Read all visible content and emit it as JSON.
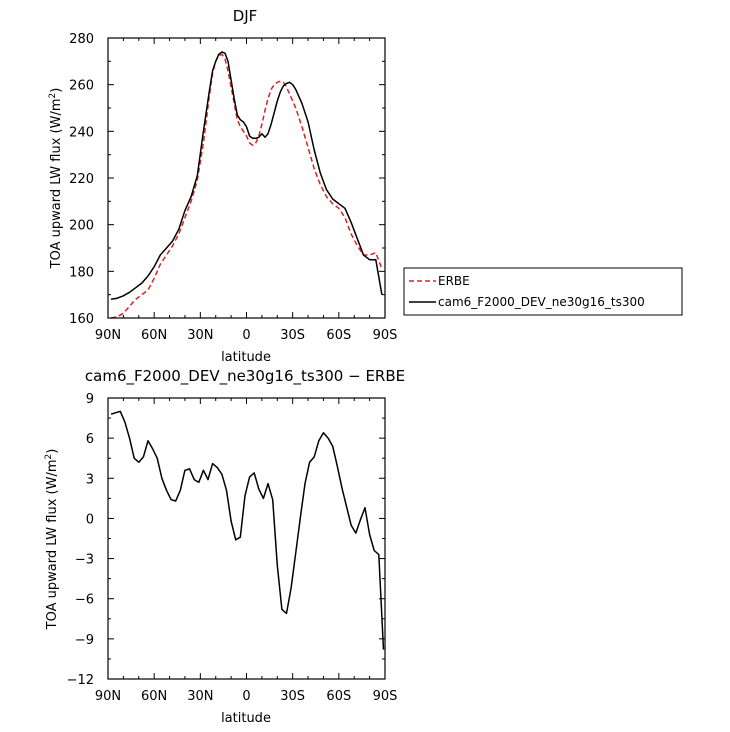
{
  "chart_data": [
    {
      "type": "line",
      "title": "DJF",
      "xlabel": "latitude",
      "ylabel": "TOA upward LW flux (W/m",
      "ylabel_sup": "2",
      "ylabel_close": ")",
      "xlim": [
        90,
        -90
      ],
      "ylim": [
        160,
        280
      ],
      "xticks": [
        90,
        60,
        30,
        0,
        -30,
        -60,
        -90
      ],
      "xticklabels": [
        "90N",
        "60N",
        "30N",
        "0",
        "30S",
        "60S",
        "90S"
      ],
      "yticks": [
        160,
        180,
        200,
        220,
        240,
        260,
        280
      ],
      "yticklabels": [
        "160",
        "180",
        "200",
        "220",
        "240",
        "260",
        "280"
      ],
      "legend_position": "right",
      "series": [
        {
          "name": "ERBE",
          "color": "#e0201f",
          "dash": true,
          "x": [
            88,
            84,
            80,
            76,
            72,
            68,
            64,
            60,
            56,
            52,
            48,
            44,
            40,
            36,
            32,
            28,
            24,
            22,
            20,
            18,
            16,
            14,
            12,
            10,
            8,
            6,
            4,
            2,
            0,
            -2,
            -4,
            -6,
            -8,
            -10,
            -12,
            -14,
            -16,
            -18,
            -20,
            -22,
            -24,
            -26,
            -28,
            -30,
            -32,
            -34,
            -36,
            -40,
            -44,
            -48,
            -52,
            -56,
            -60,
            -64,
            -68,
            -72,
            -76,
            -80,
            -84,
            -88
          ],
          "y": [
            160,
            160.5,
            162,
            165,
            168,
            170,
            172,
            177,
            183,
            187,
            191,
            196,
            203,
            210,
            219,
            235,
            256,
            265,
            270,
            272.5,
            273,
            271,
            266,
            259,
            252,
            245,
            242,
            240,
            238,
            235,
            234,
            235,
            238,
            243,
            249,
            254,
            258,
            260,
            261,
            261.5,
            261,
            259,
            256,
            253,
            250,
            246,
            242,
            233,
            224,
            217,
            212,
            209,
            207,
            203,
            196,
            191,
            187,
            187,
            188,
            181
          ]
        },
        {
          "name": "cam6_F2000_DEV_ne30g16_ts300",
          "color": "#000000",
          "dash": false,
          "x": [
            88,
            84,
            80,
            76,
            72,
            68,
            64,
            60,
            56,
            52,
            48,
            44,
            40,
            36,
            32,
            28,
            24,
            22,
            20,
            18,
            16,
            14,
            12,
            10,
            8,
            6,
            4,
            2,
            0,
            -2,
            -4,
            -6,
            -8,
            -10,
            -12,
            -14,
            -16,
            -18,
            -20,
            -22,
            -24,
            -26,
            -28,
            -30,
            -32,
            -34,
            -36,
            -40,
            -44,
            -48,
            -52,
            -56,
            -60,
            -64,
            -68,
            -72,
            -76,
            -80,
            -84,
            -88
          ],
          "y": [
            168,
            168.5,
            169.5,
            171,
            173,
            175,
            178,
            182,
            187,
            190,
            193,
            198,
            206,
            212,
            221,
            240,
            258,
            266,
            270,
            273,
            274,
            273.5,
            270,
            262,
            254,
            247,
            245,
            244,
            242,
            238,
            237,
            237,
            237.5,
            239,
            237.5,
            239,
            243,
            248,
            253,
            257,
            259.5,
            260.5,
            261,
            260,
            258,
            255,
            252,
            244,
            232,
            222,
            215,
            211,
            209,
            207,
            201,
            194,
            187,
            185,
            185,
            170
          ]
        }
      ]
    },
    {
      "type": "line",
      "title": "cam6_F2000_DEV_ne30g16_ts300 − ERBE",
      "xlabel": "latitude",
      "ylabel": "TOA upward LW flux (W/m",
      "ylabel_sup": "2",
      "ylabel_close": ")",
      "xlim": [
        90,
        -90
      ],
      "ylim": [
        -12,
        9
      ],
      "xticks": [
        90,
        60,
        30,
        0,
        -30,
        -60,
        -90
      ],
      "xticklabels": [
        "90N",
        "60N",
        "30N",
        "0",
        "30S",
        "60S",
        "90S"
      ],
      "yticks": [
        -12,
        -9,
        -6,
        -3,
        0,
        3,
        6,
        9
      ],
      "yticklabels": [
        "−12",
        "−9",
        "−6",
        "−3",
        "0",
        "3",
        "6",
        "9"
      ],
      "series": [
        {
          "name": "",
          "color": "#000000",
          "dash": false,
          "x": [
            88,
            85,
            82,
            79,
            76,
            73,
            70,
            67,
            64,
            61,
            58,
            55,
            52,
            49,
            46,
            43,
            40,
            37,
            34,
            31,
            28,
            25,
            22,
            19,
            16,
            13,
            10,
            7,
            4,
            1,
            -2,
            -5,
            -8,
            -11,
            -14,
            -17,
            -20,
            -23,
            -26,
            -29,
            -32,
            -35,
            -38,
            -41,
            -44,
            -47,
            -50,
            -53,
            -56,
            -59,
            -62,
            -65,
            -68,
            -71,
            -74,
            -77,
            -80,
            -83,
            -86,
            -89
          ],
          "y": [
            7.8,
            7.9,
            8.0,
            7.2,
            6.0,
            4.5,
            4.2,
            4.6,
            5.8,
            5.2,
            4.5,
            3.0,
            2.1,
            1.4,
            1.3,
            2.1,
            3.6,
            3.7,
            2.9,
            2.7,
            3.6,
            2.9,
            4.1,
            3.8,
            3.3,
            2.1,
            -0.2,
            -1.6,
            -1.4,
            1.7,
            3.1,
            3.4,
            2.2,
            1.5,
            2.6,
            1.4,
            -3.5,
            -6.8,
            -7.1,
            -5.2,
            -2.6,
            0.1,
            2.6,
            4.2,
            4.6,
            5.8,
            6.4,
            6.0,
            5.4,
            3.9,
            2.3,
            0.9,
            -0.5,
            -1.1,
            -0.1,
            0.8,
            -1.2,
            -2.4,
            -2.7,
            -9.8
          ]
        }
      ]
    }
  ]
}
